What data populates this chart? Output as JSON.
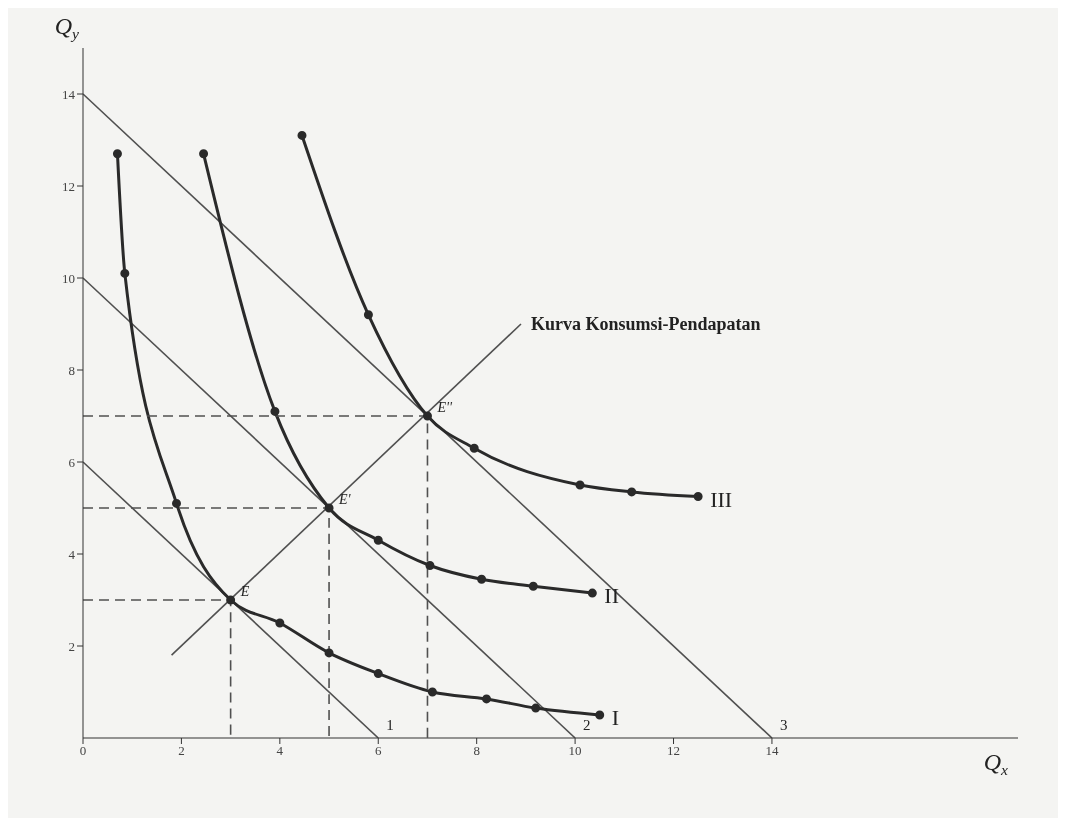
{
  "chart_data": {
    "type": "line",
    "xlabel": "Q$_{x}$",
    "ylabel": "Q$_{y}$",
    "xlim": [
      0,
      19
    ],
    "ylim": [
      0,
      15
    ],
    "xticks": [
      0,
      2,
      4,
      6,
      8,
      10,
      12,
      14
    ],
    "yticks": [
      2,
      4,
      6,
      8,
      10,
      12,
      14
    ],
    "grid": false,
    "legend": false,
    "series": [
      {
        "name": "1",
        "color": "#505050",
        "x": [
          0,
          6
        ],
        "values": [
          6,
          0
        ],
        "marker": "none",
        "line_style": "solid"
      },
      {
        "name": "2",
        "color": "#505050",
        "x": [
          0,
          10
        ],
        "values": [
          10,
          0
        ],
        "marker": "none",
        "line_style": "solid"
      },
      {
        "name": "3",
        "color": "#505050",
        "x": [
          0,
          14
        ],
        "values": [
          14,
          0
        ],
        "marker": "none",
        "line_style": "solid"
      },
      {
        "name": "I",
        "color": "#2a2a2a",
        "x": [
          0.7,
          0.85,
          1.9,
          3,
          4,
          5,
          6,
          7.1,
          8.2,
          9.2,
          10.5
        ],
        "values": [
          12.7,
          10.1,
          5.1,
          3,
          2.5,
          1.85,
          1.4,
          1,
          0.85,
          0.65,
          0.5
        ],
        "marker": "circle",
        "line_style": "solid"
      },
      {
        "name": "II",
        "color": "#2a2a2a",
        "x": [
          2.45,
          3.9,
          5,
          6,
          7.05,
          8.1,
          9.15,
          10.35
        ],
        "values": [
          12.7,
          7.1,
          5,
          4.3,
          3.75,
          3.45,
          3.3,
          3.15
        ],
        "marker": "circle",
        "line_style": "solid"
      },
      {
        "name": "III",
        "color": "#2a2a2a",
        "x": [
          4.45,
          5.8,
          7,
          7.95,
          10.1,
          11.15,
          12.5
        ],
        "values": [
          13.1,
          9.2,
          7,
          6.3,
          5.5,
          5.35,
          5.25
        ],
        "marker": "circle",
        "line_style": "solid"
      },
      {
        "color": "#505050",
        "x": [
          1.8,
          8.9
        ],
        "values": [
          1.8,
          9
        ],
        "marker": "none",
        "line_style": "solid"
      },
      {
        "color": "#505050",
        "x": [
          0,
          3,
          3
        ],
        "values": [
          3,
          3,
          0
        ],
        "marker": "none",
        "line_style": "dashed"
      },
      {
        "color": "#505050",
        "x": [
          0,
          5,
          5
        ],
        "values": [
          5,
          5,
          0
        ],
        "marker": "none",
        "line_style": "dashed"
      },
      {
        "color": "#505050",
        "x": [
          0,
          7,
          7
        ],
        "values": [
          7,
          7,
          0
        ],
        "marker": "none",
        "line_style": "dashed"
      }
    ],
    "annotations": [
      {
        "text": "Kurva Konsumsi-Pendapatan",
        "x": 8.9,
        "y": 9
      },
      {
        "text": "E",
        "x": 3,
        "y": 3
      },
      {
        "text": "E'",
        "x": 5,
        "y": 5
      },
      {
        "text": "E''",
        "x": 7,
        "y": 7
      }
    ]
  }
}
